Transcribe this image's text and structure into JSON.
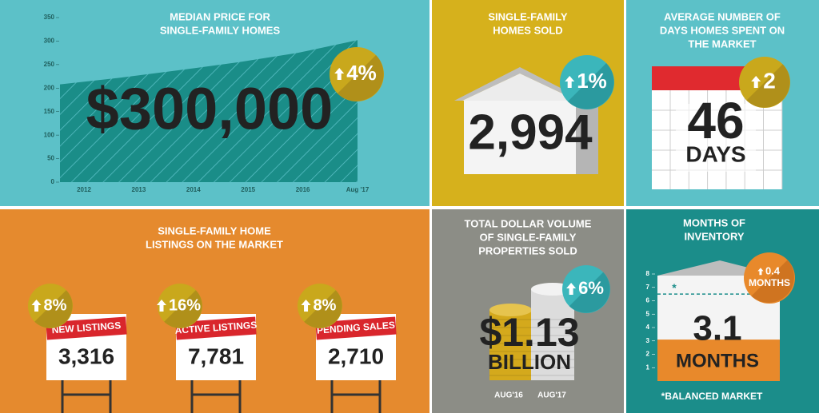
{
  "chart_data": [
    {
      "type": "area",
      "title": [
        "MEDIAN PRICE FOR",
        "SINGLE-FAMILY HOMES"
      ],
      "categories": [
        "2012",
        "2013",
        "2014",
        "2015",
        "2016",
        "Aug '17"
      ],
      "values": [
        208,
        222,
        238,
        255,
        275,
        302
      ],
      "color": "#1a8d88",
      "ylim": [
        0,
        350
      ],
      "yticks": [
        0,
        50,
        100,
        150,
        200,
        250,
        300,
        350
      ],
      "annotation": "$300,000",
      "change": "4%"
    },
    {
      "type": "bar",
      "title": [
        "MONTHS OF",
        "INVENTORY"
      ],
      "values": [
        3.1
      ],
      "value_labels": [
        "3.1"
      ],
      "unit": "MONTHS",
      "color": "#e8892b",
      "ylim": [
        0,
        8
      ],
      "yticks": [
        1,
        2,
        3,
        4,
        5,
        6,
        7,
        8
      ],
      "reference": 6.5,
      "reference_label": "*",
      "note": "*BALANCED MARKET",
      "change": "0.4",
      "change_unit": "MONTHS"
    }
  ],
  "homes_sold": {
    "title": [
      "SINGLE-FAMILY",
      "HOMES SOLD"
    ],
    "value": "2,994",
    "change": "1%"
  },
  "days_on_market": {
    "title": [
      "AVERAGE NUMBER OF",
      "DAYS HOMES SPENT ON",
      "THE MARKET"
    ],
    "value": "46",
    "unit": "DAYS",
    "change": "2"
  },
  "listings": {
    "title": [
      "SINGLE-FAMILY HOME",
      "LISTINGS ON THE MARKET"
    ],
    "items": [
      {
        "label": "NEW LISTINGS",
        "value": "3,316",
        "change": "8%"
      },
      {
        "label": "ACTIVE LISTINGS",
        "value": "7,781",
        "change": "16%"
      },
      {
        "label": "PENDING SALES",
        "value": "2,710",
        "change": "8%"
      }
    ]
  },
  "dollar_volume": {
    "title": [
      "TOTAL DOLLAR VOLUME",
      "OF SINGLE-FAMILY",
      "PROPERTIES SOLD"
    ],
    "value": "$1.13",
    "unit": "BILLION",
    "change": "6%",
    "periods": [
      "AUG'16",
      "AUG'17"
    ]
  }
}
